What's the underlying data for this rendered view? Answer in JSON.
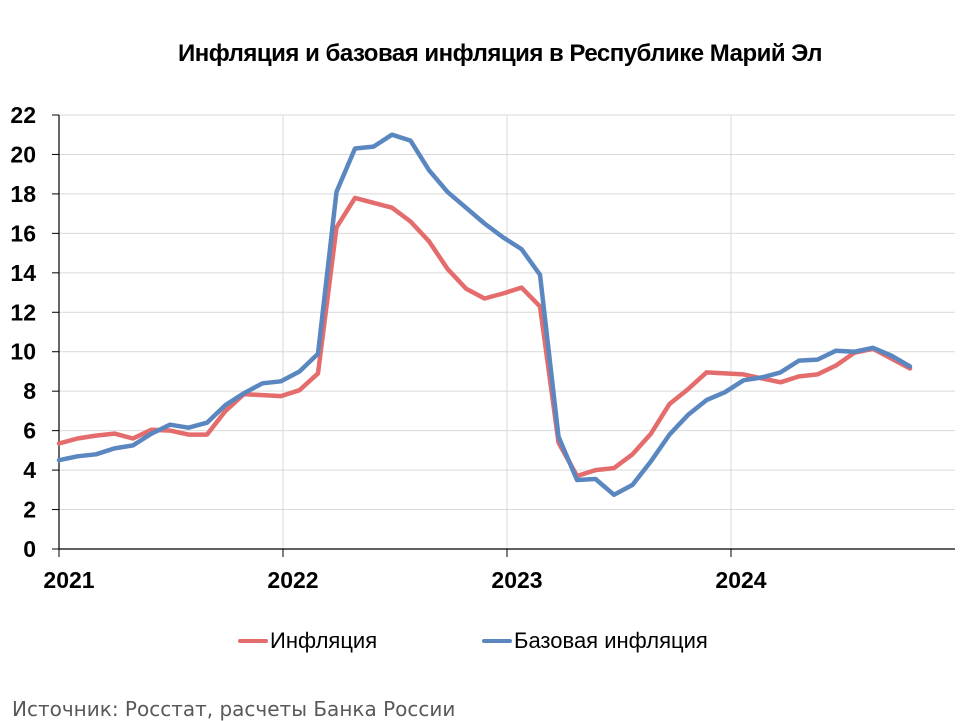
{
  "title": "Инфляция и базовая инфляция в Республике Марий Эл",
  "legend": [
    {
      "label": "Инфляция",
      "color": "#e46c6c"
    },
    {
      "label": "Базовая инфляция",
      "color": "#5b87c0"
    }
  ],
  "source": "Источник: Росстат, расчеты Банка России",
  "chart_data": {
    "type": "line",
    "title": "Инфляция и базовая инфляция в Республике Марий Эл",
    "xlabel": "",
    "ylabel": "",
    "ylim": [
      0,
      22
    ],
    "yticks": [
      0,
      2,
      4,
      6,
      8,
      10,
      12,
      14,
      16,
      18,
      20,
      22
    ],
    "xticks": [
      "2021",
      "2022",
      "2023",
      "2024"
    ],
    "grid": true,
    "legend_position": "bottom",
    "x": [
      "2021-01",
      "2021-02",
      "2021-03",
      "2021-04",
      "2021-05",
      "2021-06",
      "2021-07",
      "2021-08",
      "2021-09",
      "2021-10",
      "2021-11",
      "2021-12",
      "2022-01",
      "2022-02",
      "2022-03",
      "2022-04",
      "2022-05",
      "2022-06",
      "2022-07",
      "2022-08",
      "2022-09",
      "2022-10",
      "2022-11",
      "2022-12",
      "2023-01",
      "2023-02",
      "2023-03",
      "2023-04",
      "2023-05",
      "2023-06",
      "2023-07",
      "2023-08",
      "2023-09",
      "2023-10",
      "2023-11",
      "2023-12",
      "2024-01",
      "2024-02",
      "2024-03",
      "2024-04",
      "2024-05",
      "2024-06",
      "2024-07",
      "2024-08",
      "2024-09",
      "2024-10",
      "2024-11"
    ],
    "series": [
      {
        "name": "Инфляция",
        "color": "#e46c6c",
        "values": [
          5.35,
          5.6,
          5.75,
          5.85,
          5.6,
          6.05,
          6.0,
          5.8,
          5.8,
          7.0,
          7.85,
          7.8,
          7.75,
          8.05,
          8.9,
          16.3,
          17.8,
          17.55,
          17.3,
          16.6,
          15.6,
          14.2,
          13.2,
          12.7,
          12.95,
          13.25,
          12.3,
          5.4,
          3.7,
          4.0,
          4.1,
          4.8,
          5.85,
          7.35,
          8.1,
          8.95,
          8.9,
          8.85,
          8.65,
          8.45,
          8.75,
          8.85,
          9.3,
          9.95,
          10.15,
          9.65,
          9.15
        ]
      },
      {
        "name": "Базовая инфляция",
        "color": "#5b87c0",
        "values": [
          4.5,
          4.7,
          4.8,
          5.1,
          5.25,
          5.85,
          6.3,
          6.15,
          6.4,
          7.3,
          7.9,
          8.4,
          8.5,
          9.0,
          9.9,
          18.1,
          20.3,
          20.4,
          21.0,
          20.7,
          19.2,
          18.1,
          17.3,
          16.5,
          15.8,
          15.2,
          13.9,
          5.7,
          3.5,
          3.55,
          2.75,
          3.25,
          4.45,
          5.8,
          6.8,
          7.55,
          7.95,
          8.55,
          8.7,
          8.95,
          9.55,
          9.6,
          10.05,
          10.0,
          10.2,
          9.8,
          9.25
        ]
      }
    ]
  }
}
